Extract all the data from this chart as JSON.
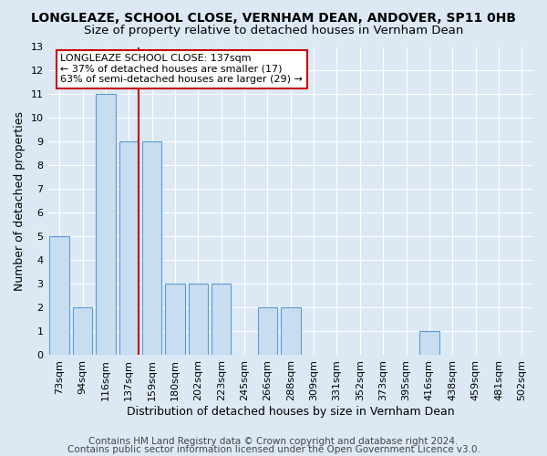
{
  "title": "LONGLEAZE, SCHOOL CLOSE, VERNHAM DEAN, ANDOVER, SP11 0HB",
  "subtitle": "Size of property relative to detached houses in Vernham Dean",
  "xlabel": "Distribution of detached houses by size in Vernham Dean",
  "ylabel": "Number of detached properties",
  "categories": [
    "73sqm",
    "94sqm",
    "116sqm",
    "137sqm",
    "159sqm",
    "180sqm",
    "202sqm",
    "223sqm",
    "245sqm",
    "266sqm",
    "288sqm",
    "309sqm",
    "331sqm",
    "352sqm",
    "373sqm",
    "395sqm",
    "416sqm",
    "438sqm",
    "459sqm",
    "481sqm",
    "502sqm"
  ],
  "values": [
    5,
    2,
    11,
    9,
    9,
    3,
    3,
    3,
    0,
    2,
    2,
    0,
    0,
    0,
    0,
    0,
    1,
    0,
    0,
    0,
    0
  ],
  "bar_color": "#c9ddf0",
  "bar_edge_color": "#5b9bd5",
  "highlight_index": 3,
  "highlight_line_color": "#cc0000",
  "annotation_text": "LONGLEAZE SCHOOL CLOSE: 137sqm\n← 37% of detached houses are smaller (17)\n63% of semi-detached houses are larger (29) →",
  "annotation_box_color": "#ffffff",
  "annotation_box_edge": "#cc0000",
  "ylim": [
    0,
    13
  ],
  "yticks": [
    0,
    1,
    2,
    3,
    4,
    5,
    6,
    7,
    8,
    9,
    10,
    11,
    12,
    13
  ],
  "footer_line1": "Contains HM Land Registry data © Crown copyright and database right 2024.",
  "footer_line2": "Contains public sector information licensed under the Open Government Licence v3.0.",
  "bg_color": "#dce9f5",
  "grid_color": "#ffffff",
  "title_fontsize": 10,
  "subtitle_fontsize": 9.5,
  "tick_fontsize": 8,
  "footer_fontsize": 7.5
}
